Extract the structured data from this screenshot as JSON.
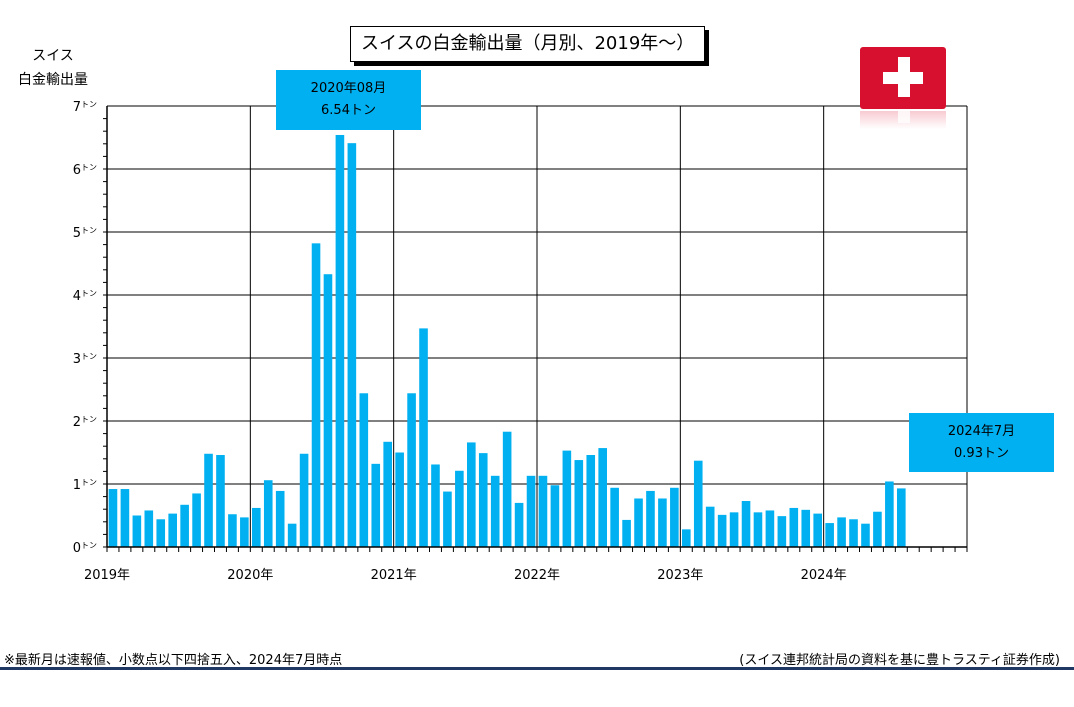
{
  "title": "スイスの白金輸出量（月別、2019年～）",
  "ylabel_lines": [
    "スイス",
    "白金輸出量"
  ],
  "callout_peak": {
    "line1": "2020年08月",
    "line2": "6.54トン"
  },
  "callout_latest": {
    "line1": "2024年7月",
    "line2": "0.93トン"
  },
  "footnote": "※最新月は速報値、小数点以下四捨五入、2024年7月時点",
  "source": "(スイス連邦統計局の資料を基に豊トラスティ証券作成)",
  "flag_icon": "swiss-flag-icon",
  "colors": {
    "bar": "#00b0f0",
    "flag": "#d7102f",
    "rule": "#1f3864"
  },
  "chart_data": {
    "type": "bar",
    "title": "スイスの白金輸出量（月別、2019年～）",
    "ylabel": "スイス 白金輸出量",
    "ylim": [
      0,
      7
    ],
    "y_ticks": [
      {
        "value": 0,
        "label": "0",
        "unit": "トン"
      },
      {
        "value": 1,
        "label": "1",
        "unit": "トン"
      },
      {
        "value": 2,
        "label": "2",
        "unit": "トン"
      },
      {
        "value": 3,
        "label": "3",
        "unit": "トン"
      },
      {
        "value": 4,
        "label": "4",
        "unit": "トン"
      },
      {
        "value": 5,
        "label": "5",
        "unit": "トン"
      },
      {
        "value": 6,
        "label": "6",
        "unit": "トン"
      },
      {
        "value": 7,
        "label": "7",
        "unit": "トン"
      }
    ],
    "x_start": "2019-01",
    "x_end": "2024-12",
    "year_labels": [
      "2019年",
      "2020年",
      "2021年",
      "2022年",
      "2023年",
      "2024年"
    ],
    "grid": true,
    "values": [
      0.92,
      0.92,
      0.5,
      0.58,
      0.44,
      0.53,
      0.67,
      0.85,
      1.48,
      1.46,
      0.52,
      0.47,
      0.62,
      1.06,
      0.89,
      0.37,
      1.48,
      4.82,
      4.33,
      6.54,
      6.41,
      2.44,
      1.32,
      1.67,
      1.5,
      2.44,
      3.47,
      1.31,
      0.88,
      1.21,
      1.66,
      1.49,
      1.13,
      1.83,
      0.7,
      1.13,
      1.13,
      0.98,
      1.53,
      1.38,
      1.46,
      1.57,
      0.94,
      0.43,
      0.77,
      0.89,
      0.77,
      0.94,
      0.28,
      1.37,
      0.64,
      0.51,
      0.55,
      0.73,
      0.55,
      0.58,
      0.49,
      0.62,
      0.59,
      0.53,
      0.38,
      0.47,
      0.44,
      0.37,
      0.56,
      1.04,
      0.93
    ]
  }
}
